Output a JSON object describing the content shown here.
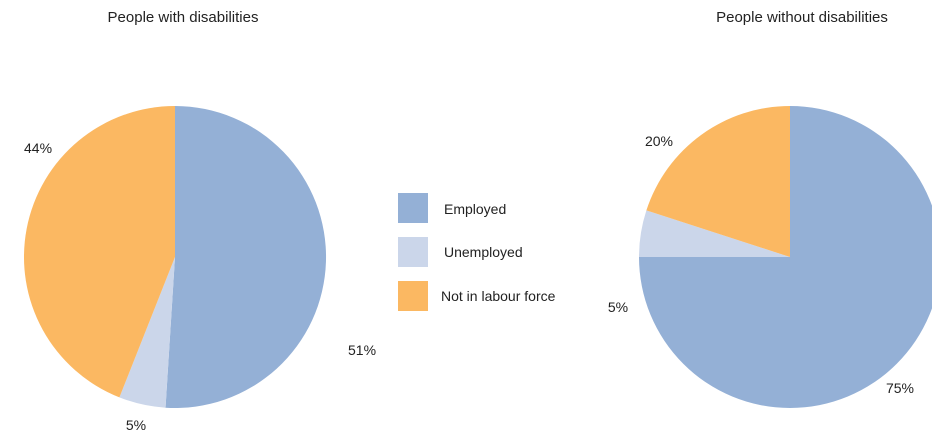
{
  "chart_data": [
    {
      "type": "pie",
      "title": "People with disabilities",
      "slices": [
        {
          "label": "Employed",
          "value": 51,
          "display": "51%"
        },
        {
          "label": "Unemployed",
          "value": 5,
          "display": "5%"
        },
        {
          "label": "Not in labour force",
          "value": 44,
          "display": "44%"
        }
      ]
    },
    {
      "type": "pie",
      "title": "People without disabilities",
      "slices": [
        {
          "label": "Employed",
          "value": 75,
          "display": "75%"
        },
        {
          "label": "Unemployed",
          "value": 5,
          "display": "5%"
        },
        {
          "label": "Not in labour force",
          "value": 20,
          "display": "20%"
        }
      ]
    }
  ],
  "legend": {
    "placement": "center",
    "items": [
      {
        "label": "Employed",
        "color": "#94b0d6"
      },
      {
        "label": "Unemployed",
        "color": "#cbd6ea"
      },
      {
        "label": "Not in labour force",
        "color": "#fbb862"
      }
    ]
  }
}
